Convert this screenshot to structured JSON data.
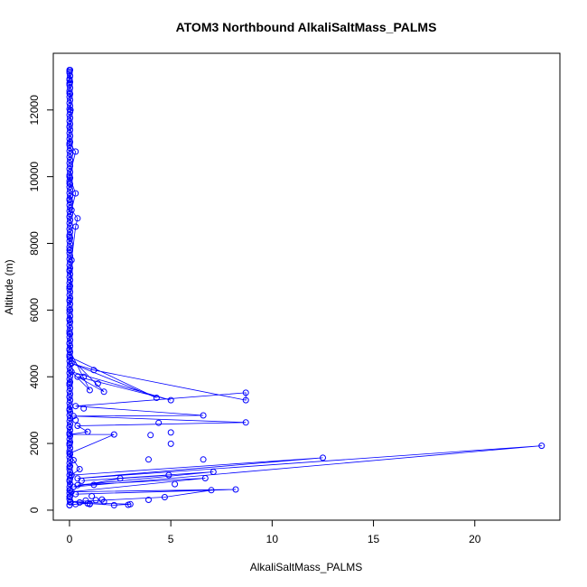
{
  "chart_data": {
    "type": "scatter",
    "title": "ATOM3 Northbound AlkaliSaltMass_PALMS",
    "xlabel": "AlkaliSaltMass_PALMS",
    "ylabel": "Altitude (m)",
    "xlim": [
      -0.8,
      24.2
    ],
    "ylim": [
      -300,
      13700
    ],
    "x_ticks": [
      0,
      5,
      10,
      15,
      20
    ],
    "y_ticks": [
      0,
      2000,
      4000,
      6000,
      8000,
      10000,
      12000
    ],
    "series_color": "#0000ff",
    "line_points": [
      {
        "x": 0.0,
        "y": 150
      },
      {
        "x": 0.3,
        "y": 180
      },
      {
        "x": 0.9,
        "y": 200
      },
      {
        "x": 2.2,
        "y": 150
      },
      {
        "x": 3.0,
        "y": 180
      },
      {
        "x": 0.5,
        "y": 230
      },
      {
        "x": 1.0,
        "y": 190
      },
      {
        "x": 0.05,
        "y": 250
      },
      {
        "x": 4.7,
        "y": 390
      },
      {
        "x": 7.0,
        "y": 600
      },
      {
        "x": 0.3,
        "y": 480
      },
      {
        "x": 8.2,
        "y": 620
      },
      {
        "x": 0.1,
        "y": 550
      },
      {
        "x": 6.7,
        "y": 960
      },
      {
        "x": 0.4,
        "y": 750
      },
      {
        "x": 7.1,
        "y": 1150
      },
      {
        "x": 0.6,
        "y": 880
      },
      {
        "x": 4.9,
        "y": 1050
      },
      {
        "x": 2.5,
        "y": 950
      },
      {
        "x": 0.2,
        "y": 700
      },
      {
        "x": 23.3,
        "y": 1930
      },
      {
        "x": 0.4,
        "y": 950
      },
      {
        "x": 12.5,
        "y": 1570
      },
      {
        "x": 0.1,
        "y": 1050
      },
      {
        "x": 0.5,
        "y": 1230
      },
      {
        "x": 0.2,
        "y": 1500
      },
      {
        "x": 0.0,
        "y": 1700
      },
      {
        "x": 2.2,
        "y": 2270
      },
      {
        "x": 0.0,
        "y": 2270
      },
      {
        "x": 0.9,
        "y": 2350
      },
      {
        "x": 0.4,
        "y": 2530
      },
      {
        "x": 8.7,
        "y": 2630
      },
      {
        "x": 0.2,
        "y": 2820
      },
      {
        "x": 6.6,
        "y": 2840
      },
      {
        "x": 0.3,
        "y": 3120
      },
      {
        "x": 8.7,
        "y": 3520
      },
      {
        "x": 8.7,
        "y": 3300
      },
      {
        "x": 1.2,
        "y": 4200
      },
      {
        "x": 0.1,
        "y": 4400
      },
      {
        "x": 4.3,
        "y": 3370
      },
      {
        "x": 0.0,
        "y": 4600
      },
      {
        "x": 1.7,
        "y": 3550
      },
      {
        "x": 0.4,
        "y": 4000
      },
      {
        "x": 5.0,
        "y": 3300
      },
      {
        "x": 0.1,
        "y": 4150
      },
      {
        "x": 1.0,
        "y": 3600
      },
      {
        "x": 0.0,
        "y": 4800
      },
      {
        "x": 0.0,
        "y": 6000
      },
      {
        "x": 0.1,
        "y": 7500
      },
      {
        "x": 0.3,
        "y": 8500
      },
      {
        "x": 0.4,
        "y": 8750
      },
      {
        "x": 0.1,
        "y": 9000
      },
      {
        "x": 0.3,
        "y": 9500
      },
      {
        "x": 0.0,
        "y": 10000
      },
      {
        "x": 0.3,
        "y": 10750
      },
      {
        "x": 0.0,
        "y": 11000
      },
      {
        "x": 0.05,
        "y": 12000
      },
      {
        "x": 0.0,
        "y": 12900
      },
      {
        "x": 0.0,
        "y": 13200
      }
    ],
    "extra_points": [
      {
        "x": 1.3,
        "y": 300
      },
      {
        "x": 1.6,
        "y": 320
      },
      {
        "x": 1.7,
        "y": 250
      },
      {
        "x": 3.9,
        "y": 310
      },
      {
        "x": 0.8,
        "y": 290
      },
      {
        "x": 1.1,
        "y": 420
      },
      {
        "x": 1.2,
        "y": 760
      },
      {
        "x": 1.0,
        "y": 180
      },
      {
        "x": 2.9,
        "y": 160
      },
      {
        "x": 5.2,
        "y": 780
      },
      {
        "x": 6.6,
        "y": 1520
      },
      {
        "x": 3.9,
        "y": 1520
      },
      {
        "x": 5.0,
        "y": 1990
      },
      {
        "x": 5.0,
        "y": 2330
      },
      {
        "x": 4.0,
        "y": 2250
      },
      {
        "x": 4.4,
        "y": 2620
      },
      {
        "x": 1.4,
        "y": 3800
      },
      {
        "x": 0.7,
        "y": 3050
      },
      {
        "x": 0.3,
        "y": 2700
      },
      {
        "x": 0.7,
        "y": 4000
      },
      {
        "x": 0.0,
        "y": 13150
      },
      {
        "x": 0.0,
        "y": 12800
      },
      {
        "x": 0.0,
        "y": 12500
      },
      {
        "x": 0.0,
        "y": 11500
      },
      {
        "x": 0.0,
        "y": 9800
      },
      {
        "x": 0.0,
        "y": 9300
      },
      {
        "x": 0.0,
        "y": 8800
      },
      {
        "x": 0.0,
        "y": 8200
      },
      {
        "x": 0.0,
        "y": 7800
      },
      {
        "x": 0.0,
        "y": 7200
      },
      {
        "x": 0.0,
        "y": 6700
      },
      {
        "x": 0.0,
        "y": 6300
      },
      {
        "x": 0.0,
        "y": 5700
      },
      {
        "x": 0.0,
        "y": 5300
      },
      {
        "x": 0.0,
        "y": 5000
      },
      {
        "x": 0.0,
        "y": 3800
      },
      {
        "x": 0.0,
        "y": 3400
      },
      {
        "x": 0.0,
        "y": 3000
      },
      {
        "x": 0.0,
        "y": 2500
      },
      {
        "x": 0.0,
        "y": 2000
      },
      {
        "x": 0.0,
        "y": 1300
      },
      {
        "x": 0.0,
        "y": 900
      },
      {
        "x": 0.0,
        "y": 600
      },
      {
        "x": 0.0,
        "y": 400
      }
    ],
    "grid": false
  }
}
